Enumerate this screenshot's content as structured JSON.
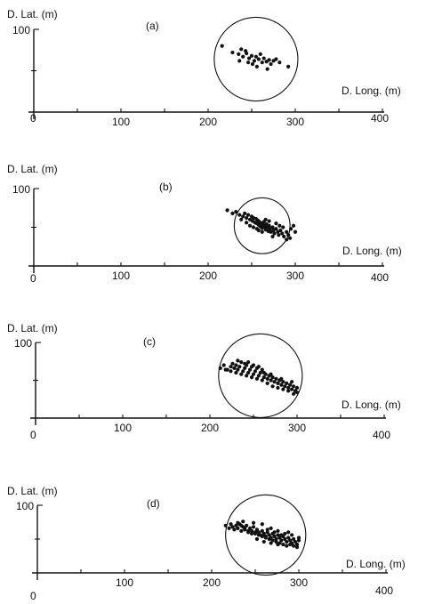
{
  "chart_data": [
    {
      "type": "scatter",
      "panel_label": "(a)",
      "xlabel": "D. Long. (m)",
      "ylabel": "D. Lat. (m)",
      "xlim": [
        0,
        400
      ],
      "ylim": [
        0,
        100
      ],
      "x_ticks": [
        "0",
        "100",
        "200",
        "300",
        "400"
      ],
      "y_ticks": [
        "100"
      ],
      "circle": {
        "cx": 255,
        "cy": 64,
        "r": 48
      },
      "points": [
        [
          216,
          80
        ],
        [
          228,
          72
        ],
        [
          235,
          70
        ],
        [
          240,
          67
        ],
        [
          244,
          71
        ],
        [
          247,
          65
        ],
        [
          250,
          68
        ],
        [
          253,
          62
        ],
        [
          255,
          67
        ],
        [
          258,
          64
        ],
        [
          260,
          70
        ],
        [
          262,
          60
        ],
        [
          264,
          65
        ],
        [
          267,
          61
        ],
        [
          270,
          63
        ],
        [
          272,
          58
        ],
        [
          275,
          62
        ],
        [
          278,
          64
        ],
        [
          282,
          60
        ],
        [
          292,
          55
        ],
        [
          236,
          62
        ],
        [
          246,
          60
        ],
        [
          256,
          55
        ],
        [
          268,
          52
        ],
        [
          251,
          58
        ],
        [
          243,
          74
        ],
        [
          238,
          76
        ]
      ]
    },
    {
      "type": "scatter",
      "panel_label": "(b)",
      "xlabel": "D. Long. (m)",
      "ylabel": "D. Lat. (m)",
      "xlim": [
        0,
        400
      ],
      "ylim": [
        0,
        100
      ],
      "x_ticks": [
        "0",
        "100",
        "200",
        "300",
        "400"
      ],
      "y_ticks": [
        "100"
      ],
      "circle": {
        "cx": 262,
        "cy": 52,
        "r": 32
      },
      "points": [
        [
          222,
          72
        ],
        [
          228,
          68
        ],
        [
          232,
          70
        ],
        [
          236,
          66
        ],
        [
          240,
          64
        ],
        [
          242,
          68
        ],
        [
          244,
          62
        ],
        [
          246,
          66
        ],
        [
          248,
          60
        ],
        [
          250,
          64
        ],
        [
          251,
          58
        ],
        [
          252,
          62
        ],
        [
          254,
          56
        ],
        [
          255,
          61
        ],
        [
          256,
          55
        ],
        [
          257,
          59
        ],
        [
          258,
          53
        ],
        [
          259,
          57
        ],
        [
          260,
          51
        ],
        [
          261,
          55
        ],
        [
          262,
          49
        ],
        [
          263,
          53
        ],
        [
          264,
          57
        ],
        [
          265,
          51
        ],
        [
          266,
          47
        ],
        [
          267,
          54
        ],
        [
          268,
          50
        ],
        [
          269,
          45
        ],
        [
          270,
          52
        ],
        [
          271,
          48
        ],
        [
          272,
          44
        ],
        [
          274,
          50
        ],
        [
          275,
          46
        ],
        [
          276,
          42
        ],
        [
          278,
          48
        ],
        [
          280,
          44
        ],
        [
          281,
          40
        ],
        [
          283,
          46
        ],
        [
          285,
          42
        ],
        [
          287,
          38
        ],
        [
          290,
          44
        ],
        [
          292,
          40
        ],
        [
          295,
          48
        ],
        [
          298,
          52
        ],
        [
          300,
          44
        ],
        [
          294,
          36
        ],
        [
          286,
          50
        ],
        [
          278,
          55
        ],
        [
          270,
          58
        ],
        [
          248,
          52
        ],
        [
          252,
          50
        ],
        [
          256,
          48
        ],
        [
          244,
          56
        ],
        [
          238,
          60
        ],
        [
          266,
          60
        ],
        [
          274,
          38
        ],
        [
          282,
          52
        ],
        [
          262,
          44
        ],
        [
          258,
          46
        ],
        [
          290,
          34
        ]
      ]
    },
    {
      "type": "scatter",
      "panel_label": "(c)",
      "xlabel": "D. Long. (m)",
      "ylabel": "D. Lat. (m)",
      "xlim": [
        0,
        400
      ],
      "ylim": [
        0,
        100
      ],
      "x_ticks": [
        "0",
        "100",
        "200",
        "300",
        "400"
      ],
      "y_ticks": [
        "100"
      ],
      "circle": {
        "cx": 258,
        "cy": 56,
        "r": 48
      },
      "points": [
        [
          212,
          66
        ],
        [
          216,
          70
        ],
        [
          220,
          64
        ],
        [
          224,
          68
        ],
        [
          226,
          72
        ],
        [
          228,
          66
        ],
        [
          230,
          70
        ],
        [
          232,
          64
        ],
        [
          234,
          68
        ],
        [
          236,
          74
        ],
        [
          238,
          62
        ],
        [
          240,
          66
        ],
        [
          242,
          70
        ],
        [
          244,
          60
        ],
        [
          246,
          64
        ],
        [
          248,
          68
        ],
        [
          250,
          58
        ],
        [
          252,
          62
        ],
        [
          254,
          66
        ],
        [
          256,
          56
        ],
        [
          258,
          60
        ],
        [
          260,
          64
        ],
        [
          262,
          54
        ],
        [
          264,
          58
        ],
        [
          266,
          52
        ],
        [
          268,
          56
        ],
        [
          270,
          50
        ],
        [
          272,
          54
        ],
        [
          274,
          48
        ],
        [
          276,
          52
        ],
        [
          278,
          46
        ],
        [
          280,
          50
        ],
        [
          282,
          44
        ],
        [
          284,
          48
        ],
        [
          286,
          42
        ],
        [
          288,
          46
        ],
        [
          290,
          40
        ],
        [
          292,
          44
        ],
        [
          294,
          38
        ],
        [
          296,
          42
        ],
        [
          298,
          36
        ],
        [
          300,
          40
        ],
        [
          300,
          34
        ],
        [
          296,
          32
        ],
        [
          290,
          36
        ],
        [
          284,
          38
        ],
        [
          278,
          40
        ],
        [
          272,
          42
        ],
        [
          266,
          46
        ],
        [
          260,
          50
        ],
        [
          254,
          52
        ],
        [
          248,
          54
        ],
        [
          242,
          56
        ],
        [
          236,
          58
        ],
        [
          230,
          60
        ],
        [
          224,
          62
        ],
        [
          218,
          64
        ],
        [
          240,
          72
        ],
        [
          250,
          70
        ],
        [
          262,
          60
        ],
        [
          270,
          58
        ],
        [
          282,
          52
        ],
        [
          294,
          48
        ],
        [
          232,
          76
        ],
        [
          244,
          74
        ],
        [
          256,
          68
        ]
      ]
    },
    {
      "type": "scatter",
      "panel_label": "(d)",
      "xlabel": "D. Long. (m)",
      "ylabel": "D. Lat. (m)",
      "xlim": [
        0,
        400
      ],
      "ylim": [
        0,
        100
      ],
      "x_ticks": [
        "0",
        "100",
        "200",
        "300",
        "400"
      ],
      "y_ticks": [
        "100"
      ],
      "circle": {
        "cx": 262,
        "cy": 56,
        "r": 46
      },
      "points": [
        [
          216,
          70
        ],
        [
          220,
          66
        ],
        [
          222,
          72
        ],
        [
          224,
          68
        ],
        [
          226,
          64
        ],
        [
          228,
          70
        ],
        [
          230,
          66
        ],
        [
          232,
          72
        ],
        [
          234,
          62
        ],
        [
          236,
          68
        ],
        [
          238,
          64
        ],
        [
          240,
          70
        ],
        [
          242,
          60
        ],
        [
          244,
          66
        ],
        [
          246,
          62
        ],
        [
          248,
          68
        ],
        [
          250,
          58
        ],
        [
          252,
          64
        ],
        [
          254,
          60
        ],
        [
          256,
          56
        ],
        [
          258,
          62
        ],
        [
          260,
          58
        ],
        [
          262,
          54
        ],
        [
          264,
          60
        ],
        [
          266,
          56
        ],
        [
          268,
          52
        ],
        [
          270,
          58
        ],
        [
          272,
          54
        ],
        [
          274,
          50
        ],
        [
          276,
          56
        ],
        [
          278,
          52
        ],
        [
          280,
          48
        ],
        [
          282,
          54
        ],
        [
          284,
          50
        ],
        [
          286,
          46
        ],
        [
          288,
          52
        ],
        [
          290,
          48
        ],
        [
          292,
          44
        ],
        [
          294,
          50
        ],
        [
          296,
          46
        ],
        [
          298,
          42
        ],
        [
          300,
          48
        ],
        [
          298,
          38
        ],
        [
          294,
          40
        ],
        [
          290,
          42
        ],
        [
          286,
          40
        ],
        [
          282,
          42
        ],
        [
          278,
          44
        ],
        [
          274,
          46
        ],
        [
          270,
          48
        ],
        [
          266,
          50
        ],
        [
          262,
          52
        ],
        [
          258,
          54
        ],
        [
          254,
          56
        ],
        [
          250,
          60
        ],
        [
          246,
          58
        ],
        [
          242,
          62
        ],
        [
          238,
          66
        ],
        [
          234,
          70
        ],
        [
          230,
          74
        ],
        [
          236,
          76
        ],
        [
          248,
          74
        ],
        [
          258,
          72
        ],
        [
          268,
          66
        ],
        [
          276,
          62
        ],
        [
          284,
          58
        ],
        [
          292,
          56
        ],
        [
          300,
          52
        ],
        [
          264,
          64
        ],
        [
          272,
          60
        ],
        [
          280,
          56
        ],
        [
          288,
          60
        ],
        [
          252,
          50
        ],
        [
          260,
          46
        ],
        [
          268,
          44
        ],
        [
          276,
          42
        ]
      ]
    }
  ]
}
